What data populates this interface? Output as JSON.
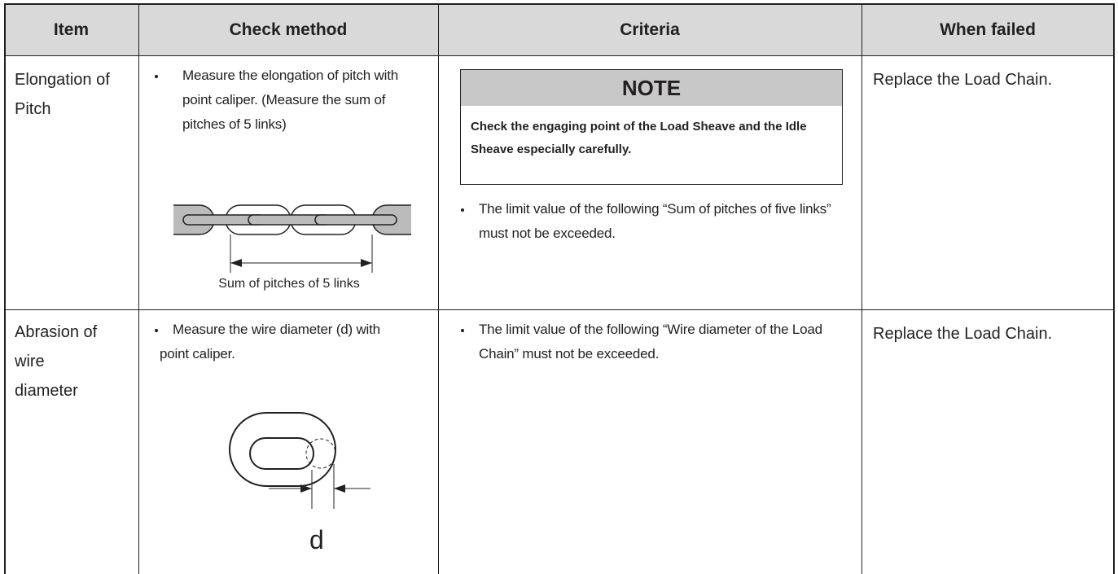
{
  "table": {
    "headers": [
      "Item",
      "Check method",
      "Criteria",
      "When failed"
    ],
    "rows": [
      {
        "item": "Elongation of Pitch",
        "check": "Measure the elongation of pitch with point caliper. (Measure the sum of pitches of 5 links)",
        "figure_label": "Sum of pitches of 5 links",
        "note": {
          "title": "NOTE",
          "text": "Check the engaging point of the Load Sheave and the Idle Sheave especially carefully."
        },
        "criteria": "The limit value of the following “Sum of pitches of five links” must not be exceeded.",
        "when_failed": "Replace the Load Chain."
      },
      {
        "item": "Abrasion of wire diameter",
        "check": "Measure the wire diameter (d) with point caliper.",
        "figure_label": "d",
        "criteria": "The limit value of the following “Wire diameter of the Load Chain” must not be exceeded.",
        "when_failed": "Replace the Load Chain."
      }
    ]
  }
}
